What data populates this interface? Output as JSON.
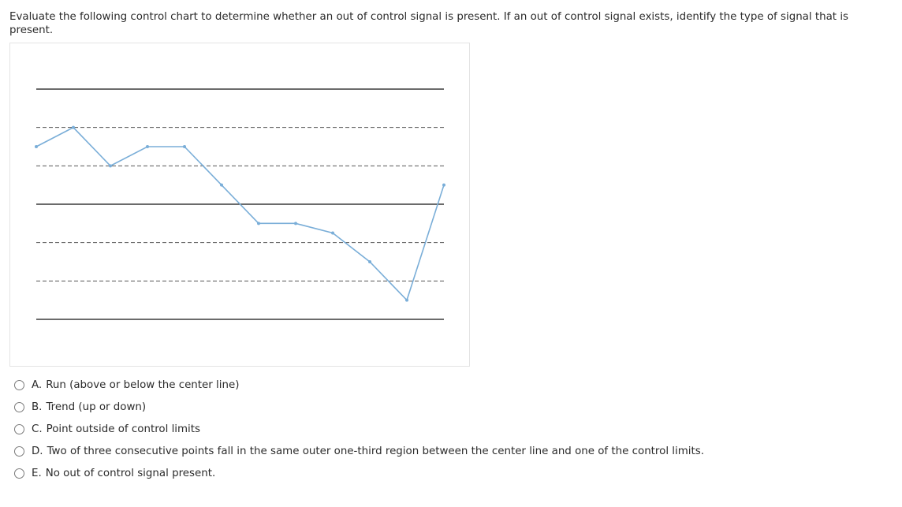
{
  "question": {
    "text": "Evaluate the following control chart to determine whether an out of control signal is present.  If an out of control signal exists, identify the type of signal that is present."
  },
  "chart_data": {
    "type": "line",
    "title": "",
    "xlabel": "",
    "ylabel": "",
    "x": [
      1,
      2,
      3,
      4,
      5,
      6,
      7,
      8,
      9,
      10,
      11,
      12
    ],
    "series": [
      {
        "values": [
          1.5,
          2.0,
          1.0,
          1.5,
          1.5,
          0.5,
          -0.5,
          -0.5,
          -0.75,
          -1.5,
          -2.5,
          0.5
        ]
      }
    ],
    "control_lines": {
      "ucl": 3,
      "upper_2sigma": 2,
      "upper_1sigma": 1,
      "center": 0,
      "lower_1sigma": -1,
      "lower_2sigma": -2,
      "lcl": -3
    },
    "ylim": [
      -3,
      3
    ],
    "grid": false,
    "line_color": "#7aaed8",
    "control_line_color": "#3a3a3a"
  },
  "options": [
    {
      "letter": "A.",
      "text": "Run (above or below the center line)"
    },
    {
      "letter": "B.",
      "text": "Trend (up or down)"
    },
    {
      "letter": "C.",
      "text": "Point outside of control limits"
    },
    {
      "letter": "D.",
      "text": "Two of three consecutive points fall in the same outer one-third region between the center line and one of the control limits."
    },
    {
      "letter": "E.",
      "text": "No out of control signal present."
    }
  ]
}
